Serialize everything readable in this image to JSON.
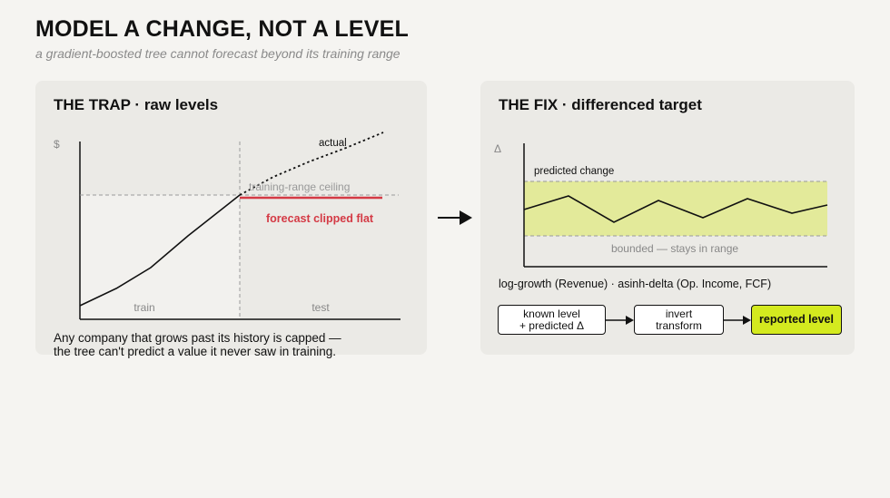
{
  "header": {
    "title": "MODEL A CHANGE, NOT A LEVEL",
    "subtitle": "a gradient-boosted tree cannot forecast beyond its training range"
  },
  "left_panel": {
    "title_bold": "THE TRAP",
    "title_sep": " · ",
    "title_rest": "raw levels",
    "y_axis_label": "$",
    "actual_label": "actual",
    "ceiling_label": "training-range ceiling",
    "clipped_label": "forecast clipped flat",
    "train_label": "train",
    "test_label": "test",
    "caption_line1": "Any company that grows past its history is capped —",
    "caption_line2": "the tree can't predict a value it never saw in training."
  },
  "right_panel": {
    "title_bold": "THE FIX",
    "title_sep": " · ",
    "title_rest": "differenced target",
    "y_axis_label": "Δ",
    "predicted_label": "predicted change",
    "bounded_label": "bounded — stays in range",
    "formula": "log-growth (Revenue) · asinh-delta (Op. Income, FCF)",
    "flow": {
      "box1_line1": "known level",
      "box1_line2": "+ predicted Δ",
      "box2_line1": "invert",
      "box2_line2": "transform",
      "box3": "reported level"
    }
  },
  "colors": {
    "background": "#f5f4f1",
    "panel": "#ebeae6",
    "clip_red": "#d43a45",
    "band_fill": "#e3ea9a",
    "highlight": "#d4ea1f"
  },
  "icons": {
    "transition_arrow": "right-arrow-icon"
  }
}
